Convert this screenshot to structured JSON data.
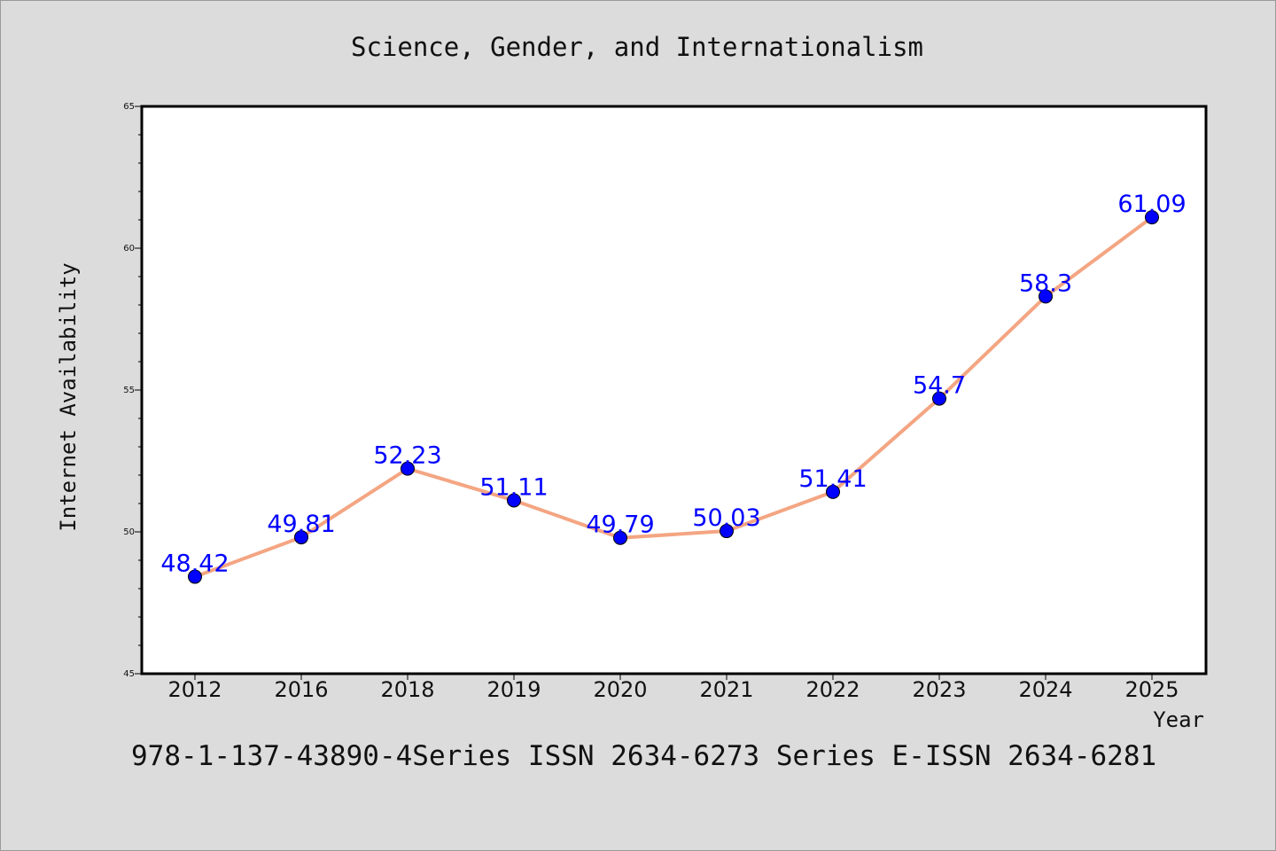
{
  "chart_data": {
    "type": "line",
    "title": "Science, Gender, and Internationalism",
    "xlabel": "Year",
    "ylabel": "Internet Availability",
    "categories": [
      "2012",
      "2016",
      "2018",
      "2019",
      "2020",
      "2021",
      "2022",
      "2023",
      "2024",
      "2025"
    ],
    "series": [
      {
        "values": [
          48.42,
          49.81,
          52.23,
          51.11,
          49.79,
          50.03,
          51.41,
          54.7,
          58.3,
          61.09
        ],
        "labels": [
          "48.42",
          "49.81",
          "52.23",
          "51.11",
          "49.79",
          "50.03",
          "51.41",
          "54.7",
          "58.3",
          "61.09"
        ]
      }
    ],
    "ylim": [
      45,
      65
    ],
    "yticks": [
      "45",
      "50",
      "55",
      "60",
      "65"
    ],
    "grid": false,
    "colors": {
      "line": "#f4a582",
      "marker": "#0000ff",
      "data_label": "#0000ff",
      "background": "#dcdcdc",
      "plot_background": "#ffffff"
    }
  },
  "footer": "978-1-137-43890-4Series ISSN 2634-6273 Series E-ISSN 2634-6281"
}
